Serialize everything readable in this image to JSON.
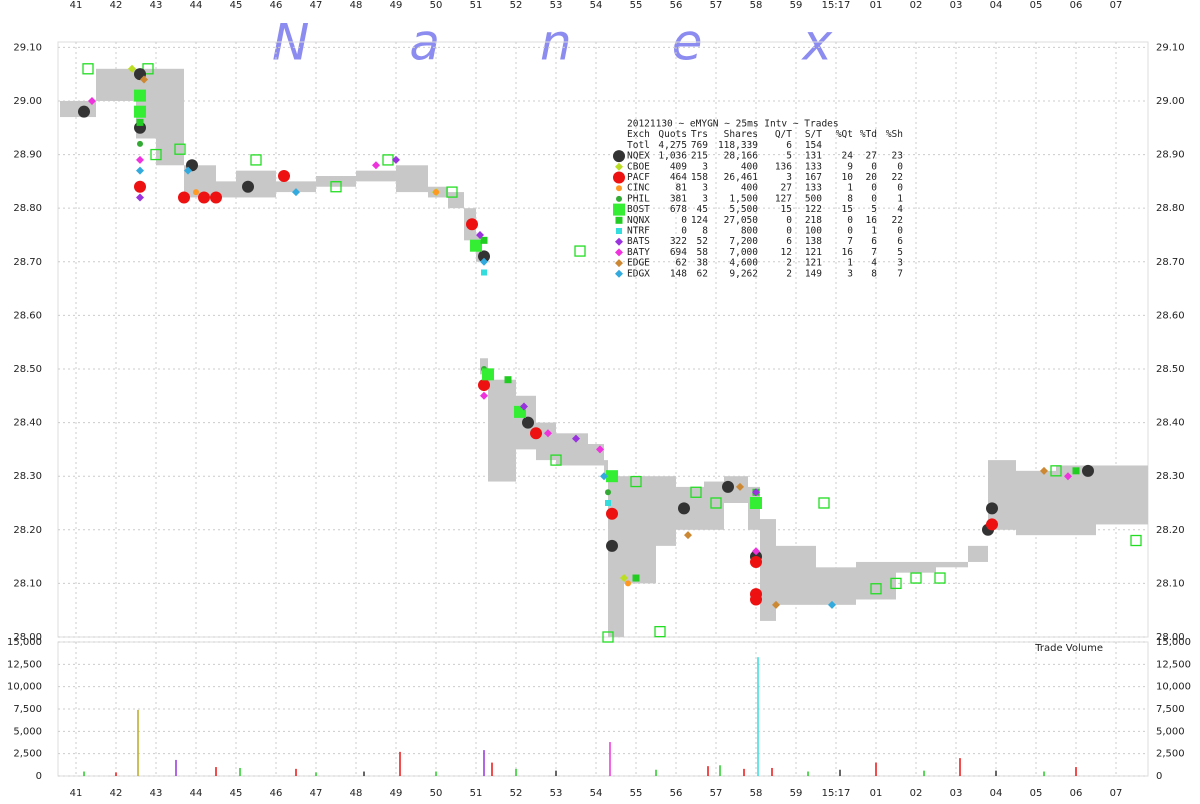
{
  "chart_data": {
    "type": "scatter",
    "title": "Nanex",
    "grid": true,
    "xlim": [
      40.55,
      67.8
    ],
    "xticks": [
      41,
      42,
      43,
      44,
      45,
      46,
      47,
      48,
      49,
      50,
      51,
      52,
      53,
      54,
      55,
      56,
      57,
      58,
      59,
      {
        "value": 60,
        "label": "15:17"
      },
      {
        "value": 61,
        "label": "01"
      },
      {
        "value": 62,
        "label": "02"
      },
      {
        "value": 63,
        "label": "03"
      },
      {
        "value": 64,
        "label": "04"
      },
      {
        "value": 65,
        "label": "05"
      },
      {
        "value": 66,
        "label": "06"
      },
      {
        "value": 67,
        "label": "07"
      }
    ],
    "ylim": [
      28.0,
      29.11
    ],
    "yticks": [
      {
        "value": 28.0,
        "label": "28.00"
      },
      {
        "value": 28.1,
        "label": "28.10"
      },
      {
        "value": 28.2,
        "label": "28.20"
      },
      {
        "value": 28.3,
        "label": "28.30"
      },
      {
        "value": 28.4,
        "label": "28.40"
      },
      {
        "value": 28.5,
        "label": "28.50"
      },
      {
        "value": 28.6,
        "label": "28.60"
      },
      {
        "value": 28.7,
        "label": "28.70"
      },
      {
        "value": 28.8,
        "label": "28.80"
      },
      {
        "value": 28.9,
        "label": "28.90"
      },
      {
        "value": 29.0,
        "label": "29.00"
      },
      {
        "value": 29.1,
        "label": "29.10"
      }
    ],
    "nbbo_band": {
      "color": "#c8c8c8",
      "x": [
        40.6,
        41.5,
        42.5,
        43.0,
        43.7,
        44.5,
        45.0,
        46.0,
        47.0,
        48.0,
        49.0,
        49.8,
        50.3,
        50.7,
        51.0,
        51.1,
        51.3,
        52.0,
        52.5,
        53.0,
        53.8,
        54.2,
        54.3,
        54.7,
        55.5,
        56.0,
        56.7,
        57.2,
        57.8,
        58.1,
        58.5,
        59.5,
        60.5,
        61.5,
        62.5,
        63.3,
        63.8,
        64.5,
        65.5,
        66.5,
        67.3
      ],
      "low": [
        28.97,
        29.0,
        28.93,
        28.88,
        28.82,
        28.82,
        28.82,
        28.83,
        28.84,
        28.85,
        28.83,
        28.82,
        28.8,
        28.74,
        28.7,
        28.49,
        28.29,
        28.35,
        28.33,
        28.32,
        28.32,
        28.3,
        28.0,
        28.1,
        28.17,
        28.2,
        28.2,
        28.25,
        28.2,
        28.03,
        28.06,
        28.06,
        28.07,
        28.12,
        28.13,
        28.14,
        28.2,
        28.19,
        28.19,
        28.21,
        28.21
      ],
      "high": [
        29.0,
        29.06,
        29.06,
        29.06,
        28.88,
        28.85,
        28.87,
        28.85,
        28.86,
        28.87,
        28.88,
        28.84,
        28.83,
        28.8,
        28.75,
        28.52,
        28.48,
        28.45,
        28.4,
        28.38,
        28.36,
        28.33,
        28.3,
        28.3,
        28.3,
        28.28,
        28.29,
        28.3,
        28.28,
        28.22,
        28.17,
        28.13,
        28.14,
        28.14,
        28.14,
        28.17,
        28.33,
        28.31,
        28.32,
        28.32,
        28.32
      ]
    },
    "quote_marks": {
      "color": "#22dd22",
      "x": [
        41.3,
        42.8,
        43.0,
        43.6,
        45.5,
        47.5,
        48.8,
        50.4,
        53.0,
        54.3,
        55.6,
        56.5,
        57.0,
        59.7,
        61.0,
        61.5,
        62.0,
        62.6,
        65.5,
        67.5,
        55.0,
        53.6
      ],
      "values": [
        29.06,
        29.06,
        28.9,
        28.91,
        28.89,
        28.84,
        28.89,
        28.83,
        28.33,
        28.0,
        28.01,
        28.27,
        28.25,
        28.25,
        28.09,
        28.1,
        28.11,
        28.11,
        28.31,
        28.18,
        28.29,
        28.72
      ]
    },
    "series": [
      {
        "name": "NQEX",
        "color": "#333333",
        "marker": "circle",
        "size": 6,
        "x": [
          41.2,
          42.6,
          42.6,
          43.9,
          45.3,
          51.2,
          51.3,
          52.3,
          54.4,
          56.2,
          57.3,
          58.0,
          63.8,
          63.9,
          66.3
        ],
        "values": [
          28.98,
          29.05,
          28.95,
          28.88,
          28.84,
          28.71,
          28.49,
          28.4,
          28.17,
          28.24,
          28.28,
          28.15,
          28.2,
          28.24,
          28.31
        ]
      },
      {
        "name": "CBOE",
        "color": "#bbdd22",
        "marker": "diamond",
        "size": 4,
        "x": [
          42.4,
          50.0,
          54.7
        ],
        "values": [
          29.06,
          28.83,
          28.11
        ]
      },
      {
        "name": "PACF",
        "color": "#ee1111",
        "marker": "circle",
        "size": 6,
        "x": [
          42.6,
          43.7,
          44.2,
          44.5,
          46.2,
          50.9,
          51.2,
          52.5,
          54.4,
          58.0,
          58.0,
          58.0,
          63.9
        ],
        "values": [
          28.84,
          28.82,
          28.82,
          28.82,
          28.86,
          28.77,
          28.47,
          28.38,
          28.23,
          28.14,
          28.08,
          28.07,
          28.21
        ]
      },
      {
        "name": "CINC",
        "color": "#ff9922",
        "marker": "circle",
        "size": 3,
        "x": [
          44.0,
          50.0,
          54.8
        ],
        "values": [
          28.83,
          28.83,
          28.1
        ]
      },
      {
        "name": "PHIL",
        "color": "#33aa33",
        "marker": "circle",
        "size": 3,
        "x": [
          42.6,
          51.2,
          54.3
        ],
        "values": [
          28.92,
          28.5,
          28.27
        ]
      },
      {
        "name": "BOST",
        "color": "#33ee33",
        "marker": "square",
        "size": 6,
        "x": [
          42.6,
          42.6,
          51.3,
          52.1,
          54.4,
          58.0,
          51.0
        ],
        "values": [
          29.01,
          28.98,
          28.49,
          28.42,
          28.3,
          28.25,
          28.73
        ]
      },
      {
        "name": "NQNX",
        "color": "#22cc22",
        "marker": "square",
        "size": 3.5,
        "x": [
          42.6,
          51.2,
          51.8,
          55.0,
          58.0,
          66.0
        ],
        "values": [
          28.96,
          28.74,
          28.48,
          28.11,
          28.27,
          28.31
        ]
      },
      {
        "name": "NTRF",
        "color": "#33dddd",
        "marker": "square",
        "size": 3,
        "x": [
          51.2,
          54.3
        ],
        "values": [
          28.68,
          28.25
        ]
      },
      {
        "name": "BATS",
        "color": "#9933dd",
        "marker": "diamond",
        "size": 4,
        "x": [
          42.6,
          49.0,
          51.1,
          52.2,
          53.5,
          58.0
        ],
        "values": [
          28.82,
          28.89,
          28.75,
          28.43,
          28.37,
          28.27
        ]
      },
      {
        "name": "BATY",
        "color": "#ee33dd",
        "marker": "diamond",
        "size": 4,
        "x": [
          41.4,
          42.6,
          48.5,
          51.2,
          52.8,
          54.1,
          58.0,
          65.8
        ],
        "values": [
          29.0,
          28.89,
          28.88,
          28.45,
          28.38,
          28.35,
          28.16,
          28.3
        ]
      },
      {
        "name": "EDGE",
        "color": "#cc8833",
        "marker": "diamond",
        "size": 4,
        "x": [
          42.7,
          56.3,
          57.6,
          65.2,
          58.5
        ],
        "values": [
          29.04,
          28.19,
          28.28,
          28.31,
          28.06
        ]
      },
      {
        "name": "EDGX",
        "color": "#33aadd",
        "marker": "diamond",
        "size": 4,
        "x": [
          42.6,
          43.8,
          46.5,
          51.2,
          54.2,
          59.9
        ],
        "values": [
          28.87,
          28.87,
          28.83,
          28.7,
          28.3,
          28.06
        ]
      }
    ],
    "stats_table": {
      "header": "20121130 ~ eMYGN ~ 25ms Intv ~ Trades",
      "columns": [
        "Exch",
        "Quots",
        "Trs",
        "Shares",
        "Q/T",
        "S/T",
        "%Qt",
        "%Td",
        "%Sh"
      ],
      "rows": [
        [
          "Totl",
          "4,275",
          "769",
          "118,339",
          "6",
          "154"
        ],
        [
          "NQEX",
          "1,036",
          "215",
          "28,166",
          "5",
          "131",
          "24",
          "27",
          "23"
        ],
        [
          "CBOE",
          "409",
          "3",
          "400",
          "136",
          "133",
          "9",
          "0",
          "0"
        ],
        [
          "PACF",
          "464",
          "158",
          "26,461",
          "3",
          "167",
          "10",
          "20",
          "22"
        ],
        [
          "CINC",
          "81",
          "3",
          "400",
          "27",
          "133",
          "1",
          "0",
          "0"
        ],
        [
          "PHIL",
          "381",
          "3",
          "1,500",
          "127",
          "500",
          "8",
          "0",
          "1"
        ],
        [
          "BOST",
          "678",
          "45",
          "5,500",
          "15",
          "122",
          "15",
          "5",
          "4"
        ],
        [
          "NQNX",
          "0",
          "124",
          "27,050",
          "0",
          "218",
          "0",
          "16",
          "22"
        ],
        [
          "NTRF",
          "0",
          "8",
          "800",
          "0",
          "100",
          "0",
          "1",
          "0"
        ],
        [
          "BATS",
          "322",
          "52",
          "7,200",
          "6",
          "138",
          "7",
          "6",
          "6"
        ],
        [
          "BATY",
          "694",
          "58",
          "7,000",
          "12",
          "121",
          "16",
          "7",
          "5"
        ],
        [
          "EDGE",
          "62",
          "38",
          "4,600",
          "2",
          "121",
          "1",
          "4",
          "3"
        ],
        [
          "EDGX",
          "148",
          "62",
          "9,262",
          "2",
          "149",
          "3",
          "8",
          "7"
        ]
      ]
    },
    "volume": {
      "label": "Trade Volume",
      "ylim": [
        0,
        15000
      ],
      "yticks": [
        0,
        {
          "value": 2500,
          "label": "2,500"
        },
        {
          "value": 5000,
          "label": "5,000"
        },
        {
          "value": 7500,
          "label": "7,500"
        },
        {
          "value": 10000,
          "label": "10,000"
        },
        {
          "value": 12500,
          "label": "12,500"
        },
        {
          "value": 15000,
          "label": "15,000"
        }
      ],
      "x": [
        41.2,
        42.0,
        42.55,
        43.5,
        44.5,
        45.1,
        46.5,
        47.0,
        48.2,
        49.1,
        50.0,
        51.2,
        51.4,
        52.0,
        53.0,
        54.35,
        55.5,
        56.8,
        57.1,
        57.7,
        58.05,
        58.4,
        59.3,
        60.1,
        61.0,
        62.2,
        63.1,
        64.0,
        65.2,
        66.0
      ],
      "values": [
        500,
        400,
        7400,
        1800,
        1000,
        900,
        800,
        400,
        500,
        2700,
        500,
        2900,
        1500,
        800,
        600,
        3800,
        700,
        1100,
        1200,
        800,
        13300,
        900,
        500,
        700,
        1500,
        600,
        2000,
        600,
        500,
        1000
      ],
      "colors": [
        "#22cc22",
        "#ee1111",
        "#bbaa22",
        "#9933dd",
        "#ee1111",
        "#22cc22",
        "#ee1111",
        "#22cc22",
        "#333333",
        "#ee1111",
        "#22cc22",
        "#9933dd",
        "#ee1111",
        "#22cc22",
        "#333333",
        "#ee33dd",
        "#22cc22",
        "#ee1111",
        "#22cc22",
        "#ee1111",
        "#33dddd",
        "#ee1111",
        "#22cc22",
        "#333333",
        "#ee1111",
        "#22cc22",
        "#ee1111",
        "#333333",
        "#22cc22",
        "#ee1111"
      ]
    }
  }
}
